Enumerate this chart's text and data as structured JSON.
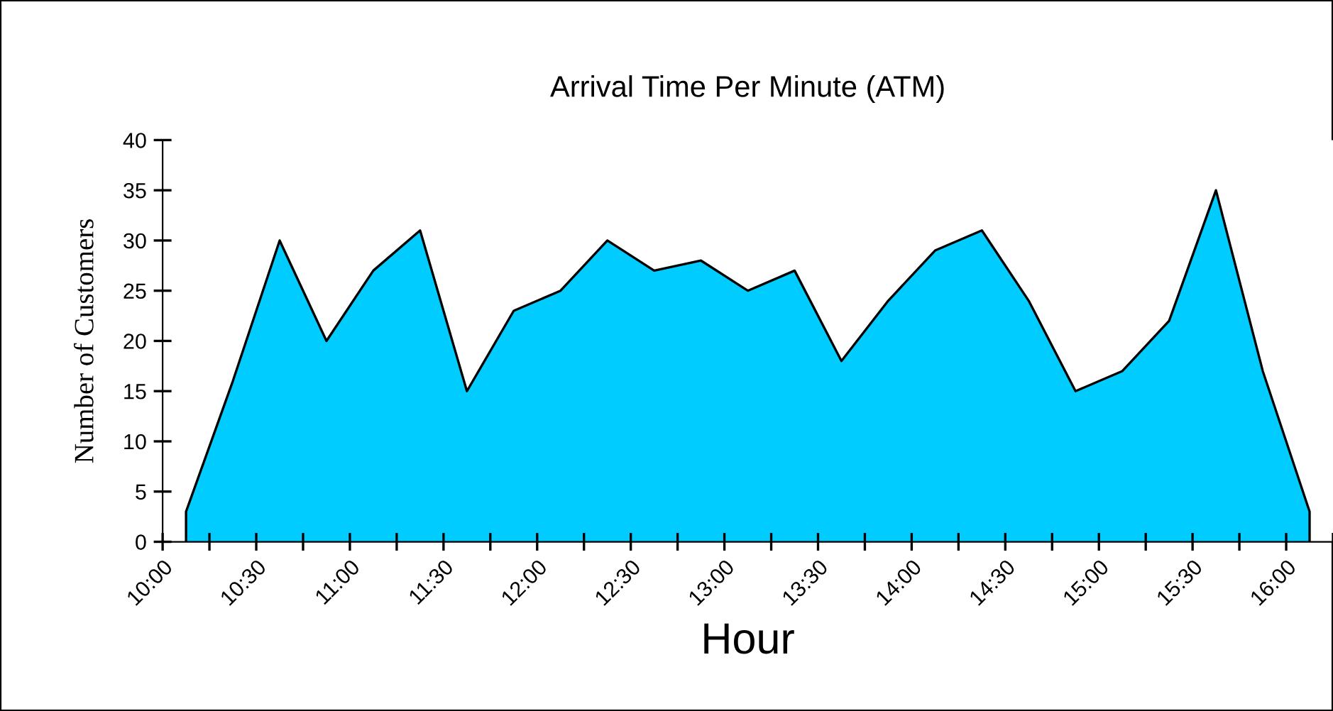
{
  "chart_data": {
    "type": "area",
    "title": "Arrival Time Per Minute (ATM)",
    "xlabel": "Hour",
    "ylabel": "Number of Customers",
    "x": [
      10.125,
      10.375,
      10.625,
      10.875,
      11.125,
      11.375,
      11.625,
      11.875,
      12.125,
      12.375,
      12.625,
      12.875,
      13.125,
      13.375,
      13.625,
      13.875,
      14.125,
      14.375,
      14.625,
      14.875,
      15.125,
      15.375,
      15.625,
      15.875,
      16.125
    ],
    "series": [
      {
        "color": "#00ccff",
        "values": [
          3,
          16,
          30,
          20,
          27,
          31,
          15,
          23,
          25,
          30,
          27,
          28,
          25,
          27,
          18,
          24,
          29,
          31,
          24,
          15,
          17,
          22,
          35,
          17,
          3
        ]
      }
    ],
    "xlim": [
      10,
      16.25
    ],
    "xticks": [
      {
        "value": 10,
        "label": "10:00"
      },
      {
        "value": 10.25,
        "label": null
      },
      {
        "value": 10.5,
        "label": "10:30"
      },
      {
        "value": 10.75,
        "label": null
      },
      {
        "value": 11,
        "label": "11:00"
      },
      {
        "value": 11.25,
        "label": null
      },
      {
        "value": 11.5,
        "label": "11:30"
      },
      {
        "value": 11.75,
        "label": null
      },
      {
        "value": 12,
        "label": "12:00"
      },
      {
        "value": 12.25,
        "label": null
      },
      {
        "value": 12.5,
        "label": "12:30"
      },
      {
        "value": 12.75,
        "label": null
      },
      {
        "value": 13,
        "label": "13:00"
      },
      {
        "value": 13.25,
        "label": null
      },
      {
        "value": 13.5,
        "label": "13:30"
      },
      {
        "value": 13.75,
        "label": null
      },
      {
        "value": 14,
        "label": "14:00"
      },
      {
        "value": 14.25,
        "label": null
      },
      {
        "value": 14.5,
        "label": "14:30"
      },
      {
        "value": 14.75,
        "label": null
      },
      {
        "value": 15,
        "label": "15:00"
      },
      {
        "value": 15.25,
        "label": null
      },
      {
        "value": 15.5,
        "label": "15:30"
      },
      {
        "value": 15.75,
        "label": null
      },
      {
        "value": 16,
        "label": "16:00"
      },
      {
        "value": 16.25,
        "label": null
      }
    ],
    "ylim": [
      0,
      40
    ],
    "yticks": [
      0,
      5,
      10,
      15,
      20,
      25,
      30,
      35,
      40
    ]
  }
}
